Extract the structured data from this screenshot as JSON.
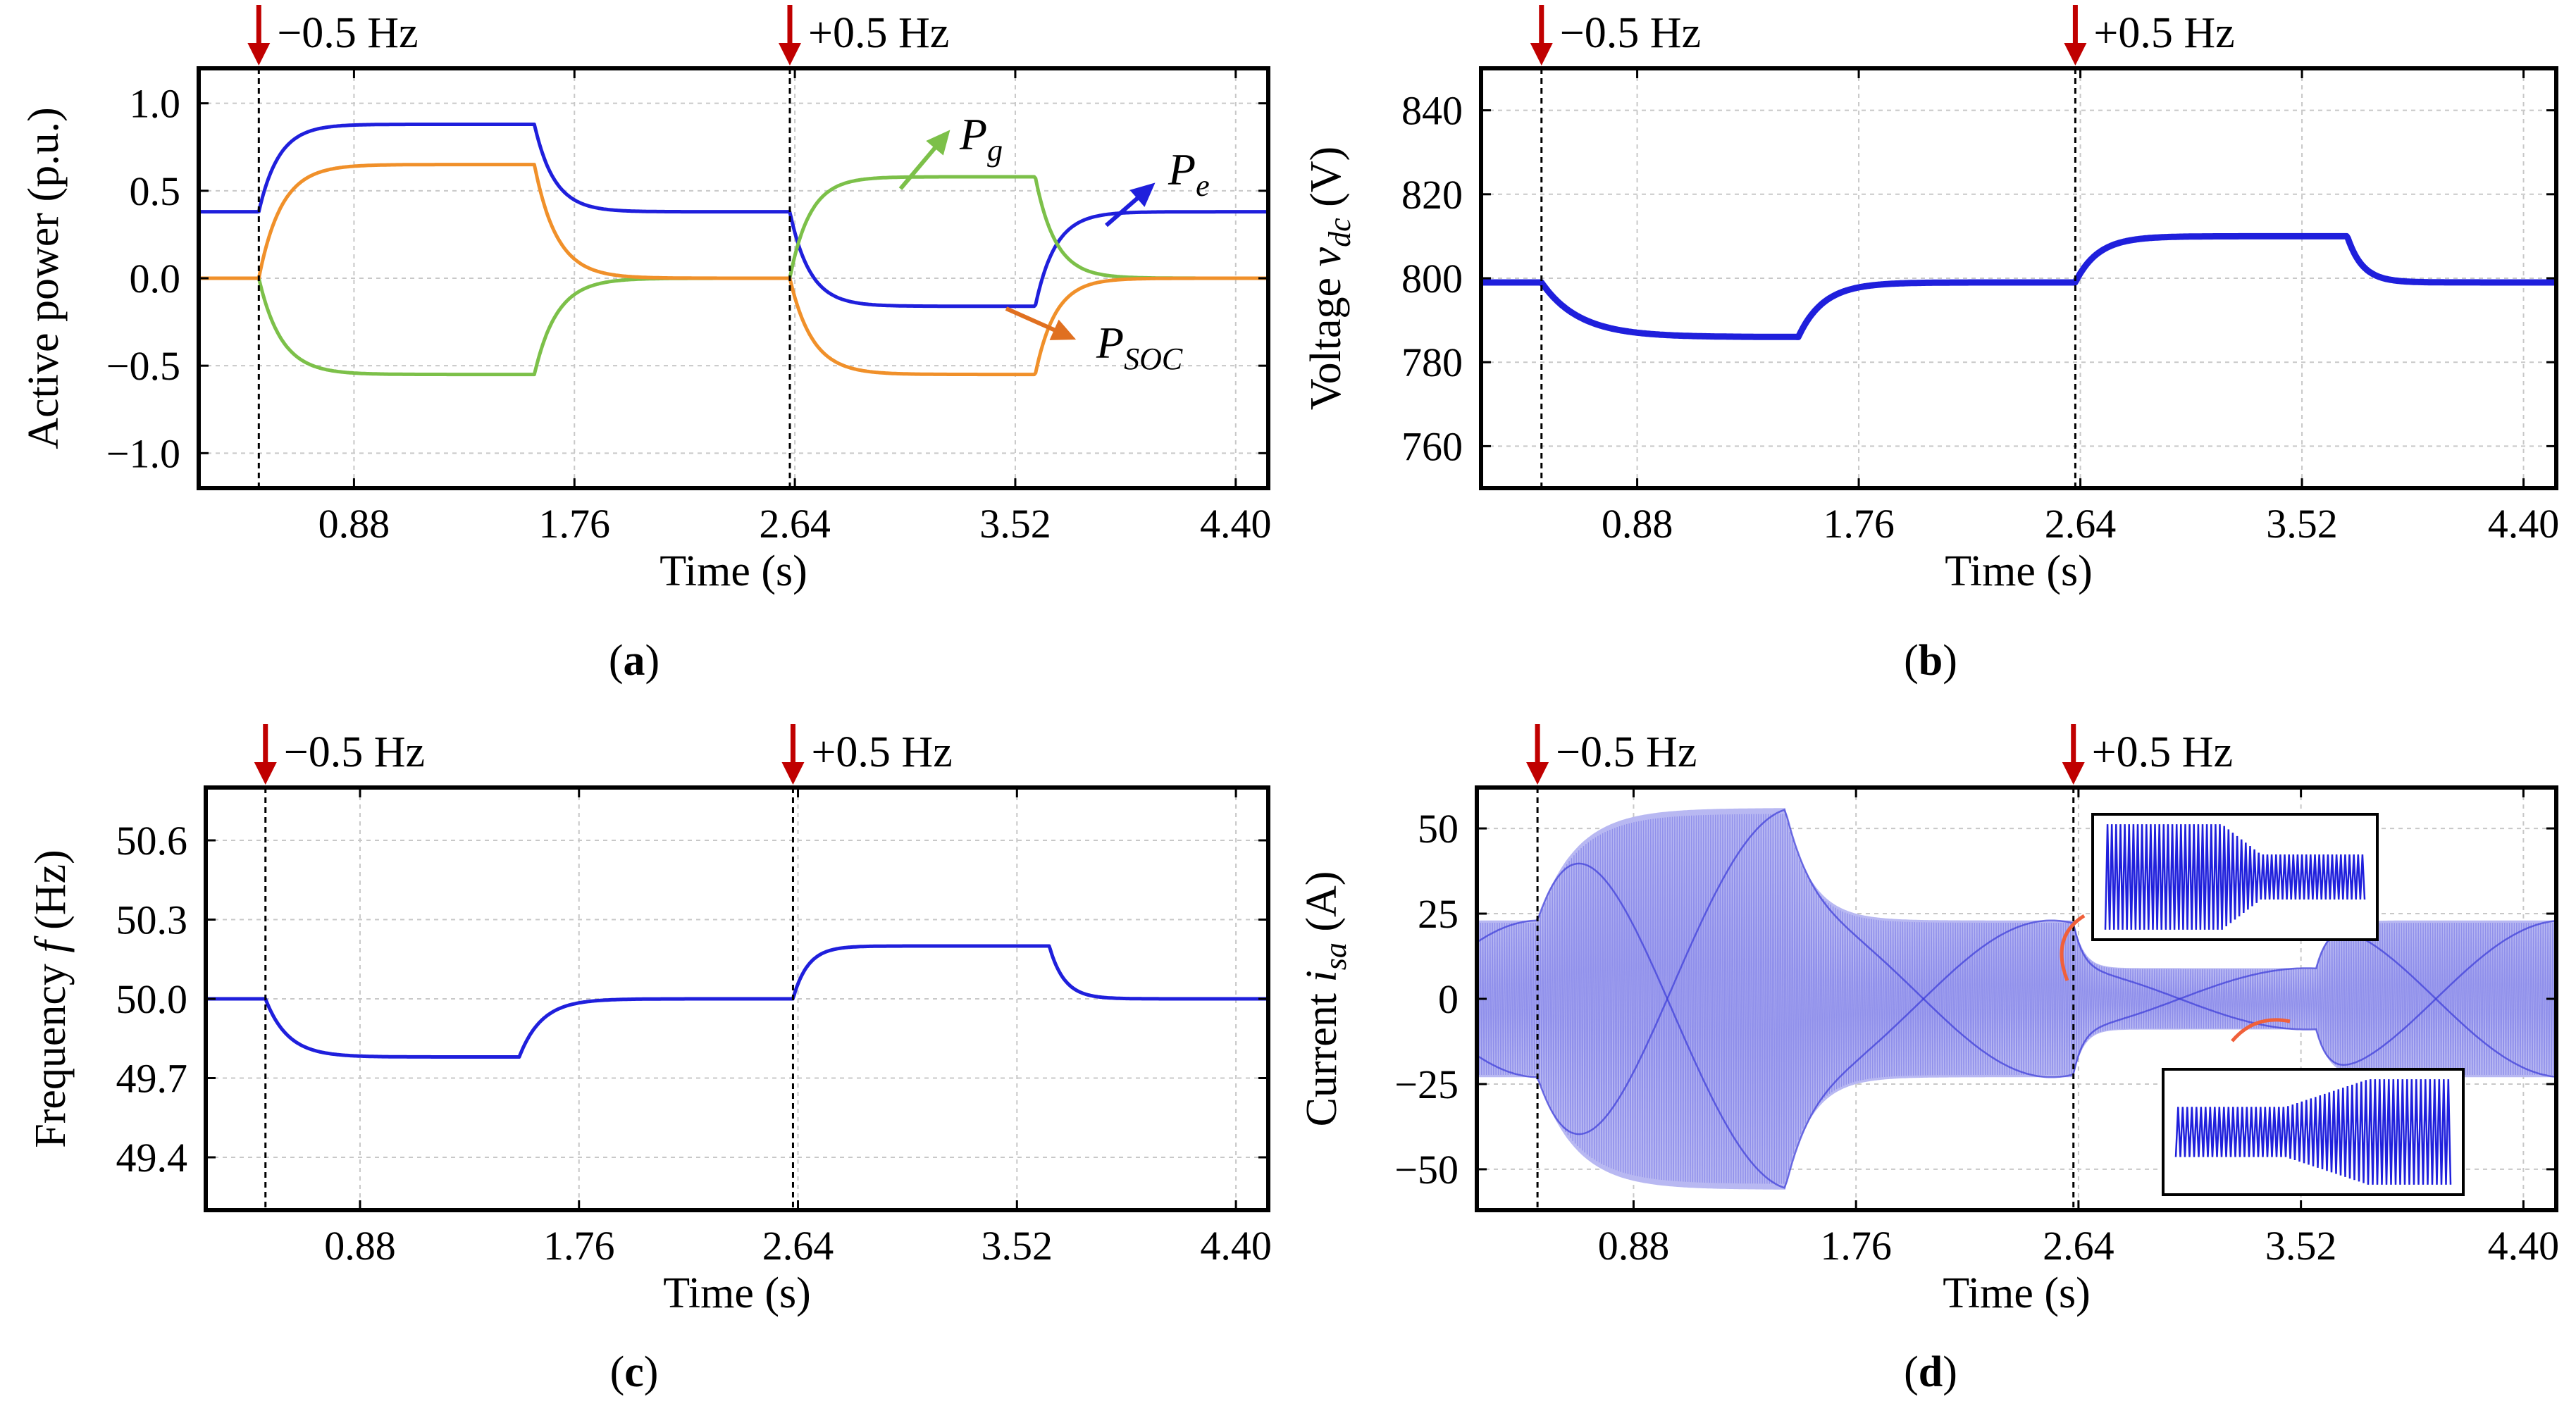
{
  "chart_data": [
    {
      "panel": "(a)",
      "type": "line",
      "title": "",
      "xlabel": "Time (s)",
      "ylabel": "Active power (p.u.)",
      "xlim": [
        0.26,
        4.53
      ],
      "ylim": [
        -1.2,
        1.2
      ],
      "xticks": [
        0.88,
        1.76,
        2.64,
        3.52,
        4.4
      ],
      "xtick_labels": [
        "0.88",
        "1.76",
        "2.64",
        "3.52",
        "4.40"
      ],
      "yticks": [
        1.0,
        0.5,
        0.0,
        -0.5,
        -1.0
      ],
      "ytick_labels": [
        "1.0",
        "0.5",
        "0.0",
        "−0.5",
        "−1.0"
      ],
      "grid": true,
      "events": [
        {
          "t": 0.5,
          "label": "−0.5 Hz"
        },
        {
          "t": 2.62,
          "label": "+0.5 Hz"
        }
      ],
      "annotations": [
        {
          "main": "P",
          "sub": "g",
          "series": "Pg"
        },
        {
          "main": "P",
          "sub": "e",
          "series": "Pe"
        },
        {
          "main": "P",
          "sub": "SOC",
          "series": "Psoc"
        }
      ],
      "series": [
        {
          "id": "Pe",
          "color": "#1f1fdc",
          "segments": [
            {
              "t0": 0.26,
              "t1": 0.5,
              "v": 0.38
            },
            {
              "t0": 0.5,
              "t1": 1.6,
              "from": 0.38,
              "to": 0.88,
              "tau": 0.08
            },
            {
              "t0": 1.6,
              "t1": 2.62,
              "from": 0.88,
              "to": 0.38,
              "tau": 0.08
            },
            {
              "t0": 2.62,
              "t1": 3.6,
              "from": 0.38,
              "to": -0.16,
              "tau": 0.08
            },
            {
              "t0": 3.6,
              "t1": 4.53,
              "from": -0.16,
              "to": 0.38,
              "tau": 0.08
            }
          ]
        },
        {
          "id": "Pg",
          "color": "#7cc049",
          "segments": [
            {
              "t0": 0.26,
              "t1": 0.5,
              "v": 0.0
            },
            {
              "t0": 0.5,
              "t1": 1.6,
              "from": 0.0,
              "to": -0.55,
              "tau": 0.09
            },
            {
              "t0": 1.6,
              "t1": 2.62,
              "from": -0.55,
              "to": 0.0,
              "tau": 0.09
            },
            {
              "t0": 2.62,
              "t1": 3.6,
              "from": 0.0,
              "to": 0.58,
              "tau": 0.08
            },
            {
              "t0": 3.6,
              "t1": 4.53,
              "from": 0.58,
              "to": 0.0,
              "tau": 0.08
            }
          ]
        },
        {
          "id": "Psoc",
          "color": "#f0902a",
          "segments": [
            {
              "t0": 0.26,
              "t1": 0.5,
              "v": 0.0
            },
            {
              "t0": 0.5,
              "t1": 1.6,
              "from": 0.0,
              "to": 0.65,
              "tau": 0.09
            },
            {
              "t0": 1.6,
              "t1": 2.62,
              "from": 0.65,
              "to": 0.0,
              "tau": 0.09
            },
            {
              "t0": 2.62,
              "t1": 3.6,
              "from": 0.0,
              "to": -0.55,
              "tau": 0.09
            },
            {
              "t0": 3.6,
              "t1": 4.53,
              "from": -0.55,
              "to": 0.0,
              "tau": 0.08
            }
          ]
        }
      ]
    },
    {
      "panel": "(b)",
      "type": "line",
      "title": "",
      "xlabel": "Time (s)",
      "ylabel_main": "Voltage ",
      "ylabel_var": "v",
      "ylabel_sub": "dc",
      "ylabel_unit": " (V)",
      "xlim": [
        0.26,
        4.53
      ],
      "ylim": [
        750,
        850
      ],
      "xticks": [
        0.88,
        1.76,
        2.64,
        3.52,
        4.4
      ],
      "xtick_labels": [
        "0.88",
        "1.76",
        "2.64",
        "3.52",
        "4.40"
      ],
      "yticks": [
        840,
        820,
        800,
        780,
        760
      ],
      "ytick_labels": [
        "840",
        "820",
        "800",
        "780",
        "760"
      ],
      "grid": true,
      "events": [
        {
          "t": 0.5,
          "label": "−0.5 Hz"
        },
        {
          "t": 2.62,
          "label": "+0.5 Hz"
        }
      ],
      "series": [
        {
          "id": "vdc",
          "color": "#1f1fdc",
          "segments": [
            {
              "t0": 0.26,
              "t1": 0.5,
              "v": 799
            },
            {
              "t0": 0.5,
              "t1": 1.52,
              "from": 799,
              "to": 786,
              "tau": 0.15
            },
            {
              "t0": 1.52,
              "t1": 2.62,
              "from": 786,
              "to": 799,
              "tau": 0.1
            },
            {
              "t0": 2.62,
              "t1": 3.7,
              "from": 799,
              "to": 810,
              "tau": 0.09
            },
            {
              "t0": 3.7,
              "t1": 4.53,
              "from": 810,
              "to": 799,
              "tau": 0.06
            }
          ]
        }
      ]
    },
    {
      "panel": "(c)",
      "type": "line",
      "title": "",
      "xlabel": "Time (s)",
      "ylabel_main": "Frequency ",
      "ylabel_var": "f",
      "ylabel_unit": " (Hz)",
      "xlim": [
        0.26,
        4.53
      ],
      "ylim": [
        49.2,
        50.8
      ],
      "xticks": [
        0.88,
        1.76,
        2.64,
        3.52,
        4.4
      ],
      "xtick_labels": [
        "0.88",
        "1.76",
        "2.64",
        "3.52",
        "4.40"
      ],
      "yticks": [
        50.6,
        50.3,
        50.0,
        49.7,
        49.4
      ],
      "ytick_labels": [
        "50.6",
        "50.3",
        "50.0",
        "49.7",
        "49.4"
      ],
      "grid": true,
      "events": [
        {
          "t": 0.5,
          "label": "−0.5 Hz"
        },
        {
          "t": 2.62,
          "label": "+0.5 Hz"
        }
      ],
      "series": [
        {
          "id": "f",
          "color": "#1f1fdc",
          "segments": [
            {
              "t0": 0.26,
              "t1": 0.5,
              "v": 50.0
            },
            {
              "t0": 0.5,
              "t1": 1.52,
              "from": 50.0,
              "to": 49.78,
              "tau": 0.09
            },
            {
              "t0": 1.52,
              "t1": 2.62,
              "from": 49.78,
              "to": 50.0,
              "tau": 0.09
            },
            {
              "t0": 2.62,
              "t1": 3.65,
              "from": 50.0,
              "to": 50.2,
              "tau": 0.06
            },
            {
              "t0": 3.65,
              "t1": 4.53,
              "from": 50.2,
              "to": 50.0,
              "tau": 0.06
            }
          ]
        }
      ]
    },
    {
      "panel": "(d)",
      "type": "line",
      "title": "",
      "xlabel": "Time (s)",
      "ylabel_main": "Current ",
      "ylabel_var": "i",
      "ylabel_sub": "sa",
      "ylabel_unit": " (A)",
      "xlim": [
        0.26,
        4.53
      ],
      "ylim": [
        -62,
        62
      ],
      "xticks": [
        0.88,
        1.76,
        2.64,
        3.52,
        4.4
      ],
      "xtick_labels": [
        "0.88",
        "1.76",
        "2.64",
        "3.52",
        "4.40"
      ],
      "yticks": [
        50,
        25,
        0,
        -25,
        -50
      ],
      "ytick_labels": [
        "50",
        "25",
        "0",
        "−25",
        "−50"
      ],
      "grid": true,
      "events": [
        {
          "t": 0.5,
          "label": "−0.5 Hz"
        },
        {
          "t": 2.62,
          "label": "+0.5 Hz"
        }
      ],
      "series": [
        {
          "id": "isa_envelope",
          "color": "#1f1fdc",
          "segments": [
            {
              "t0": 0.26,
              "t1": 0.5,
              "v": 23
            },
            {
              "t0": 0.5,
              "t1": 1.48,
              "from": 23,
              "to": 56,
              "tau": 0.15
            },
            {
              "t0": 1.48,
              "t1": 2.62,
              "from": 56,
              "to": 23,
              "tau": 0.1
            },
            {
              "t0": 2.62,
              "t1": 3.58,
              "from": 23,
              "to": 9,
              "tau": 0.04
            },
            {
              "t0": 3.58,
              "t1": 4.53,
              "from": 9,
              "to": 23,
              "tau": 0.05
            }
          ]
        }
      ]
    }
  ]
}
